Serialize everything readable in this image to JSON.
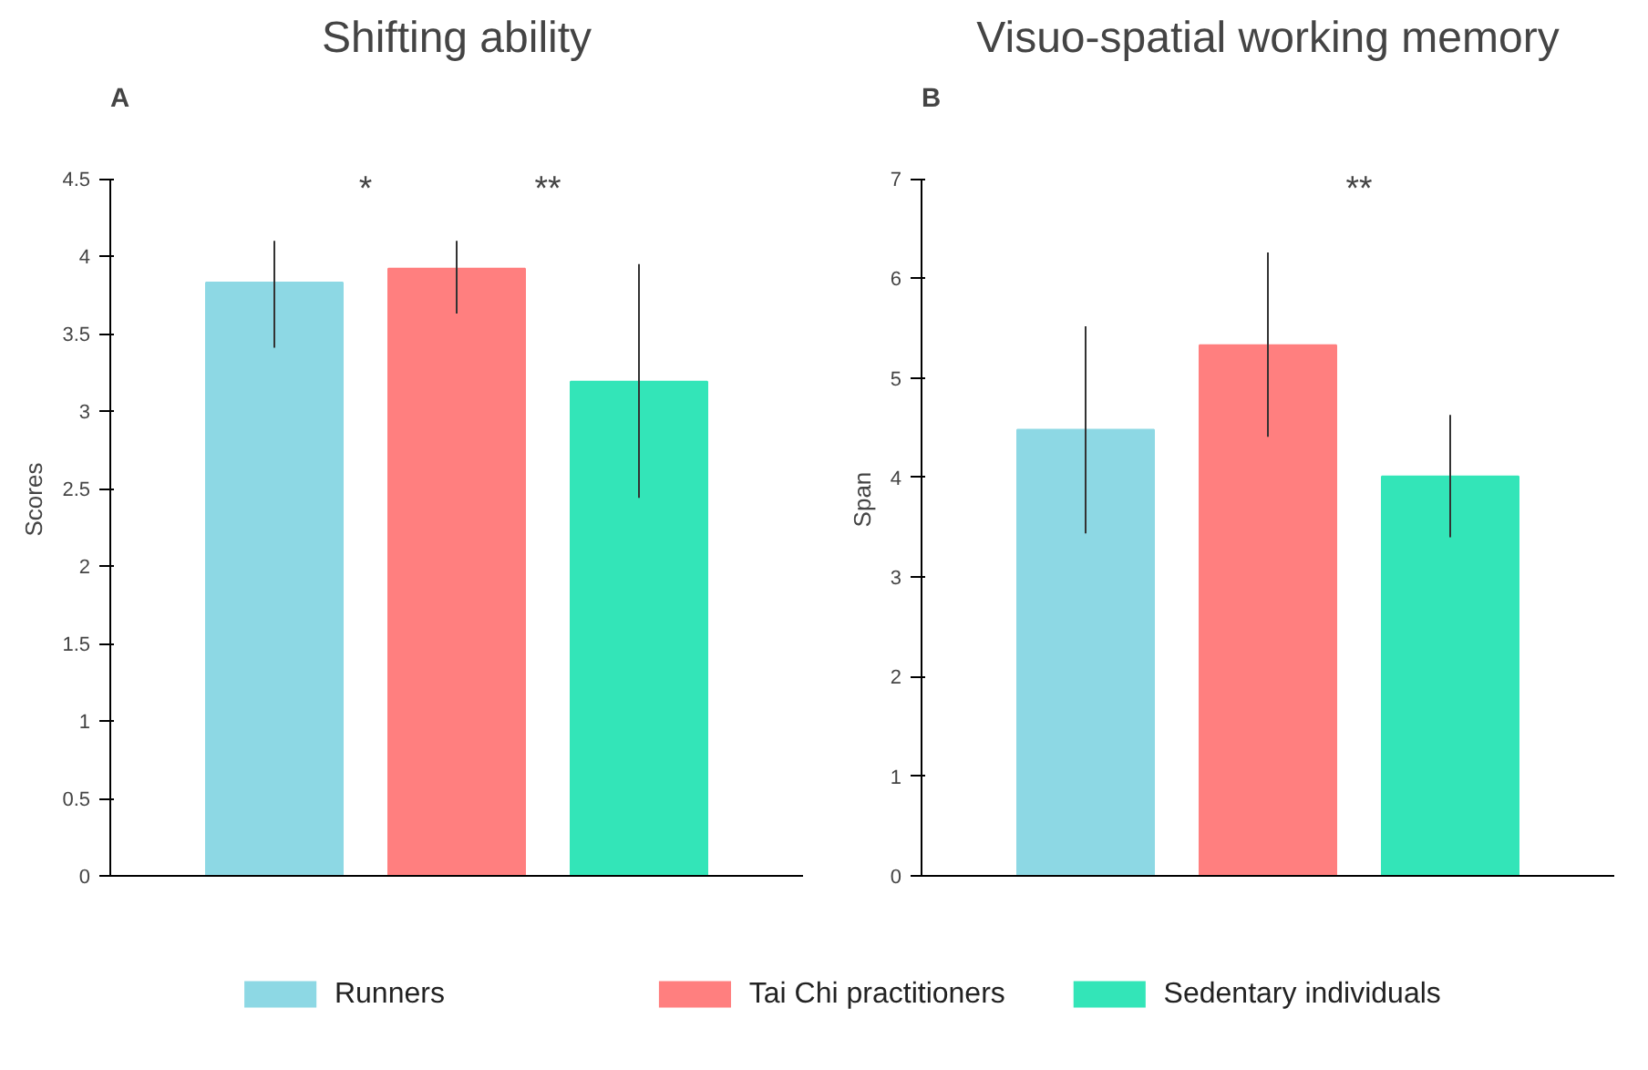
{
  "chart_data": [
    {
      "type": "bar",
      "title": "Shifting ability",
      "subtitle": "A",
      "ylabel": "Scores",
      "categories": [
        null,
        null,
        null
      ],
      "series": [
        {
          "name": "Runners",
          "color": "#8dd8e4",
          "values": [
            3.83,
            null,
            null
          ],
          "errors": [
            [
              3.41,
              4.1
            ],
            null,
            null
          ]
        },
        {
          "name": "Tai Chi practitioners",
          "color": "#ff7f7f",
          "values": [
            null,
            3.92,
            null
          ],
          "errors": [
            null,
            [
              3.63,
              4.1
            ],
            null
          ]
        },
        {
          "name": "Sedentary individuals",
          "color": "#33e5b8",
          "values": [
            null,
            null,
            3.19
          ],
          "errors": [
            null,
            null,
            [
              2.44,
              3.95
            ]
          ]
        }
      ],
      "ylim": [
        0,
        4.5
      ],
      "yticks": [
        0,
        0.5,
        1,
        1.5,
        2,
        2.5,
        3,
        3.5,
        4,
        4.5
      ],
      "annotations": [
        "*",
        "**"
      ],
      "grid": false,
      "legend": "bottom"
    },
    {
      "type": "bar",
      "title": "Visuo-spatial working memory",
      "subtitle": "B",
      "ylabel": "Span",
      "categories": [
        null,
        null,
        null
      ],
      "series": [
        {
          "color": "#8dd8e4",
          "values": [
            4.48,
            null,
            null
          ],
          "errors": [
            [
              3.44,
              5.52
            ],
            null,
            null
          ]
        },
        {
          "color": "#ff7f7f",
          "values": [
            null,
            5.33,
            null
          ],
          "errors": [
            null,
            [
              4.41,
              6.26
            ],
            null
          ]
        },
        {
          "color": "#33e5b8",
          "values": [
            null,
            null,
            4.01
          ],
          "errors": [
            null,
            null,
            [
              3.4,
              4.63
            ]
          ]
        }
      ],
      "ylim": [
        0,
        7
      ],
      "yticks": [
        0,
        1,
        2,
        3,
        4,
        5,
        6,
        7
      ],
      "annotations": [
        "**"
      ],
      "grid": false
    }
  ]
}
